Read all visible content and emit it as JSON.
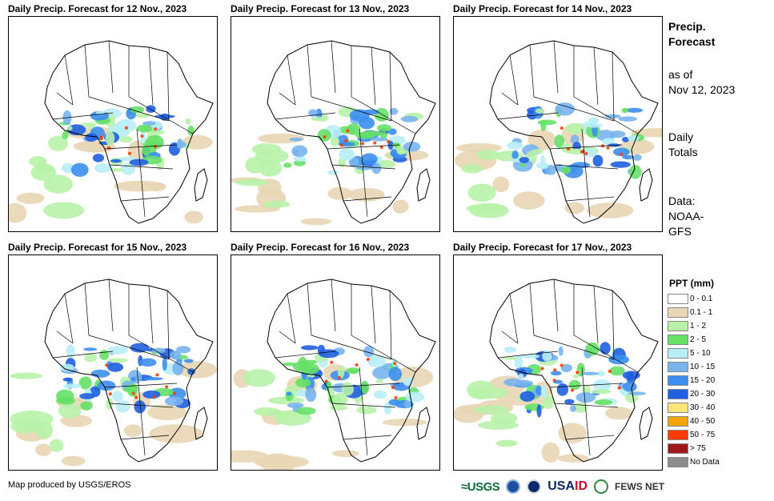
{
  "panels": [
    {
      "title": "Daily Precip. Forecast for 12 Nov., 2023"
    },
    {
      "title": "Daily Precip. Forecast for 13 Nov., 2023"
    },
    {
      "title": "Daily Precip. Forecast for 14 Nov., 2023"
    },
    {
      "title": "Daily Precip. Forecast for 15 Nov., 2023"
    },
    {
      "title": "Daily Precip. Forecast for 16 Nov., 2023"
    },
    {
      "title": "Daily Precip. Forecast for 17 Nov., 2023"
    }
  ],
  "side": {
    "title_line1": "Precip.",
    "title_line2": "Forecast",
    "asof_line1": "as of",
    "asof_line2": "Nov 12, 2023",
    "daily_line1": "Daily",
    "daily_line2": "Totals",
    "data_line1": "Data:",
    "data_line2": "NOAA-",
    "data_line3": "GFS"
  },
  "legend": {
    "title": "PPT (mm)",
    "items": [
      {
        "label": "0 - 0.1",
        "color": "#ffffff"
      },
      {
        "label": "0.1 - 1",
        "color": "#e8d6b4"
      },
      {
        "label": "1 - 2",
        "color": "#b8f2a8"
      },
      {
        "label": "2 - 5",
        "color": "#66e066"
      },
      {
        "label": "5 - 10",
        "color": "#b8eef8"
      },
      {
        "label": "10 - 15",
        "color": "#78b4ee"
      },
      {
        "label": "15 - 20",
        "color": "#3c8ef0"
      },
      {
        "label": "20 - 30",
        "color": "#1f5fe0"
      },
      {
        "label": "30 - 40",
        "color": "#fbe57a"
      },
      {
        "label": "40 - 50",
        "color": "#f5a300"
      },
      {
        "label": "50 - 75",
        "color": "#ff3b00"
      },
      {
        "label": "> 75",
        "color": "#a01818"
      },
      {
        "label": "No Data",
        "color": "#8c8c8c"
      }
    ]
  },
  "footer": {
    "credit": "Map produced by USGS/EROS",
    "logos": {
      "usgs": "≈USGS",
      "usaid_a": "USA",
      "usaid_b": "ID",
      "fews": "FEWS NET"
    }
  }
}
